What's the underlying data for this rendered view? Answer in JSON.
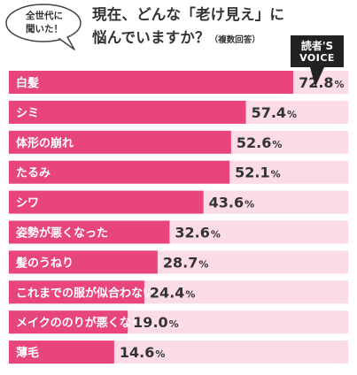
{
  "header": {
    "bubble_line1": "全世代に",
    "bubble_line2": "聞いた！",
    "title_line1": "現在、どんな「老け見え」に",
    "title_line2": "悩んでいますか？",
    "title_note": "（複数回答）",
    "badge_line1": "読者'S",
    "badge_line2": "VOICE"
  },
  "colors": {
    "bar": "#e8457e",
    "track": "#fbdbe6",
    "value_text": "#333333",
    "label_text": "#ffffff",
    "badge": "#222222"
  },
  "chart_data": {
    "type": "bar",
    "orientation": "horizontal",
    "categories": [
      "白髪",
      "シミ",
      "体形の崩れ",
      "たるみ",
      "シワ",
      "姿勢が悪くなった",
      "髪のうねり",
      "これまでの服が似合わない",
      "メイクののりが悪くなった",
      "薄毛"
    ],
    "values": [
      72.8,
      57.4,
      52.6,
      52.1,
      43.6,
      32.6,
      28.7,
      24.4,
      19.0,
      14.6
    ],
    "value_labels": [
      "72.8",
      "57.4",
      "52.6",
      "52.1",
      "43.6",
      "32.6",
      "28.7",
      "24.4",
      "19.0",
      "14.6"
    ],
    "unit": "%",
    "xlim": [
      0,
      100
    ],
    "grid": false,
    "legend": "none"
  }
}
